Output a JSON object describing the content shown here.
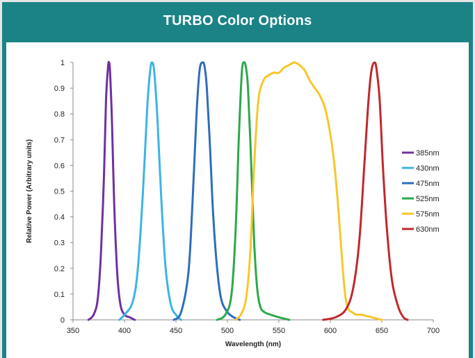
{
  "header": {
    "title": "TURBO Color Options"
  },
  "chart_data": {
    "type": "line",
    "title": "TURBO Color Options",
    "xlabel": "Wavelength (nm)",
    "ylabel": "Relative Power (Arbitrary units)",
    "xlim": [
      350,
      700
    ],
    "ylim": [
      0,
      1
    ],
    "x_ticks": [
      "350",
      "400",
      "450",
      "500",
      "550",
      "600",
      "650",
      "700"
    ],
    "y_ticks": [
      "0",
      "0.1",
      "0.2",
      "0.3",
      "0.4",
      "0.5",
      "0.6",
      "0.7",
      "0.8",
      "0.9",
      "1"
    ],
    "grid": false,
    "legend_position": "right",
    "series": [
      {
        "name": "385nm",
        "color": "#7030a0",
        "x": [
          365,
          370,
          374,
          377,
          380,
          382,
          384,
          385,
          386,
          388,
          390,
          393,
          396,
          400,
          405,
          410
        ],
        "y": [
          0,
          0.02,
          0.08,
          0.25,
          0.55,
          0.85,
          0.98,
          1.0,
          0.96,
          0.75,
          0.45,
          0.18,
          0.06,
          0.02,
          0.01,
          0
        ]
      },
      {
        "name": "430nm",
        "color": "#3cb4e5",
        "x": [
          395,
          400,
          408,
          413,
          418,
          422,
          425,
          427,
          429,
          432,
          436,
          440,
          445,
          450,
          455
        ],
        "y": [
          0,
          0.02,
          0.07,
          0.2,
          0.5,
          0.82,
          0.97,
          1.0,
          0.96,
          0.78,
          0.45,
          0.2,
          0.06,
          0.02,
          0
        ]
      },
      {
        "name": "475nm",
        "color": "#2e6dbd",
        "x": [
          448,
          455,
          462,
          466,
          470,
          473,
          476,
          478,
          480,
          483,
          486,
          490,
          494,
          500,
          506,
          512
        ],
        "y": [
          0,
          0.03,
          0.18,
          0.45,
          0.8,
          0.97,
          1.0,
          0.98,
          0.9,
          0.68,
          0.42,
          0.2,
          0.08,
          0.03,
          0.01,
          0
        ]
      },
      {
        "name": "525nm",
        "color": "#2ca84a",
        "x": [
          490,
          498,
          504,
          508,
          511,
          514,
          516,
          518,
          520,
          523,
          526,
          529,
          532,
          536,
          542,
          550,
          560
        ],
        "y": [
          0,
          0.02,
          0.1,
          0.35,
          0.7,
          0.96,
          1.0,
          0.98,
          0.9,
          0.62,
          0.3,
          0.12,
          0.05,
          0.03,
          0.02,
          0.01,
          0
        ]
      },
      {
        "name": "575nm",
        "color": "#f7c72a",
        "x": [
          508,
          513,
          518,
          522,
          526,
          530,
          535,
          540,
          545,
          550,
          555,
          560,
          565,
          570,
          575,
          580,
          585,
          590,
          595,
          600,
          604,
          608,
          612,
          615,
          618,
          621,
          625,
          630,
          640,
          650
        ],
        "y": [
          0,
          0.02,
          0.08,
          0.25,
          0.6,
          0.85,
          0.93,
          0.95,
          0.96,
          0.96,
          0.98,
          0.99,
          1.0,
          0.99,
          0.97,
          0.93,
          0.9,
          0.87,
          0.82,
          0.72,
          0.6,
          0.42,
          0.2,
          0.08,
          0.04,
          0.03,
          0.02,
          0.02,
          0.01,
          0
        ]
      },
      {
        "name": "630nm",
        "color": "#c0282c",
        "x": [
          593,
          605,
          615,
          622,
          628,
          633,
          637,
          640,
          643,
          645,
          648,
          651,
          655,
          660,
          666,
          671,
          675
        ],
        "y": [
          0,
          0.01,
          0.04,
          0.12,
          0.3,
          0.6,
          0.85,
          0.97,
          1.0,
          0.97,
          0.85,
          0.6,
          0.35,
          0.15,
          0.05,
          0.01,
          0
        ]
      }
    ]
  }
}
